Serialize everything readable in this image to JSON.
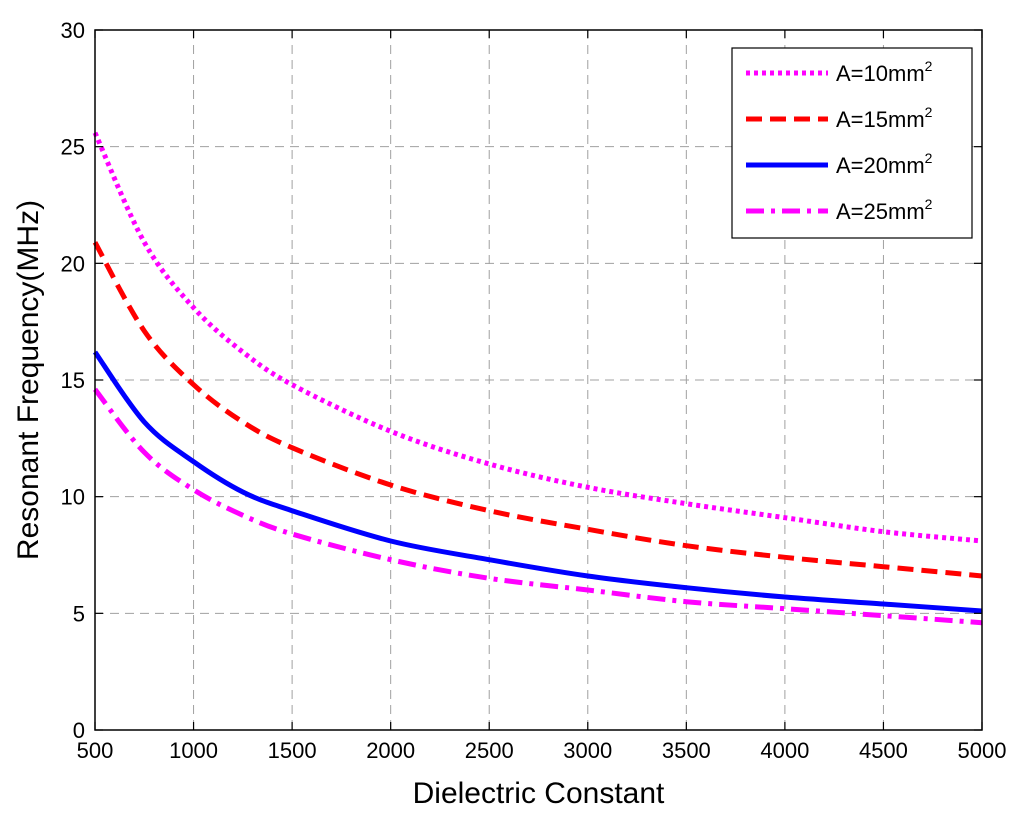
{
  "chart_data": {
    "type": "line",
    "xlabel": "Dielectric Constant",
    "ylabel": "Resonant Frequency(MHz)",
    "xlim": [
      500,
      5000
    ],
    "ylim": [
      0,
      30
    ],
    "xticks": [
      500,
      1000,
      1500,
      2000,
      2500,
      3000,
      3500,
      4000,
      4500,
      5000
    ],
    "yticks": [
      0,
      5,
      10,
      15,
      20,
      25,
      30
    ],
    "grid": true,
    "legend_position": "top-right",
    "x": [
      500,
      750,
      1000,
      1250,
      1500,
      2000,
      2500,
      3000,
      3500,
      4000,
      4500,
      5000
    ],
    "series": [
      {
        "name": "A=10mm",
        "name_sup": "2",
        "color": "#ff00ff",
        "style": "dotted",
        "values": [
          25.6,
          20.9,
          18.1,
          16.2,
          14.8,
          12.8,
          11.4,
          10.4,
          9.7,
          9.1,
          8.5,
          8.1
        ]
      },
      {
        "name": "A=15mm",
        "name_sup": "2",
        "color": "#ff0000",
        "style": "dashed",
        "values": [
          20.9,
          17.1,
          14.8,
          13.2,
          12.1,
          10.5,
          9.4,
          8.6,
          7.9,
          7.4,
          7.0,
          6.6
        ]
      },
      {
        "name": "A=20mm",
        "name_sup": "2",
        "color": "#0000ff",
        "style": "solid",
        "values": [
          16.2,
          13.2,
          11.5,
          10.2,
          9.4,
          8.1,
          7.3,
          6.6,
          6.1,
          5.7,
          5.4,
          5.1
        ]
      },
      {
        "name": "A=25mm",
        "name_sup": "2",
        "color": "#ff00ff",
        "style": "dashdot",
        "values": [
          14.6,
          11.9,
          10.3,
          9.2,
          8.4,
          7.3,
          6.5,
          6.0,
          5.5,
          5.2,
          4.9,
          4.6
        ]
      }
    ]
  }
}
